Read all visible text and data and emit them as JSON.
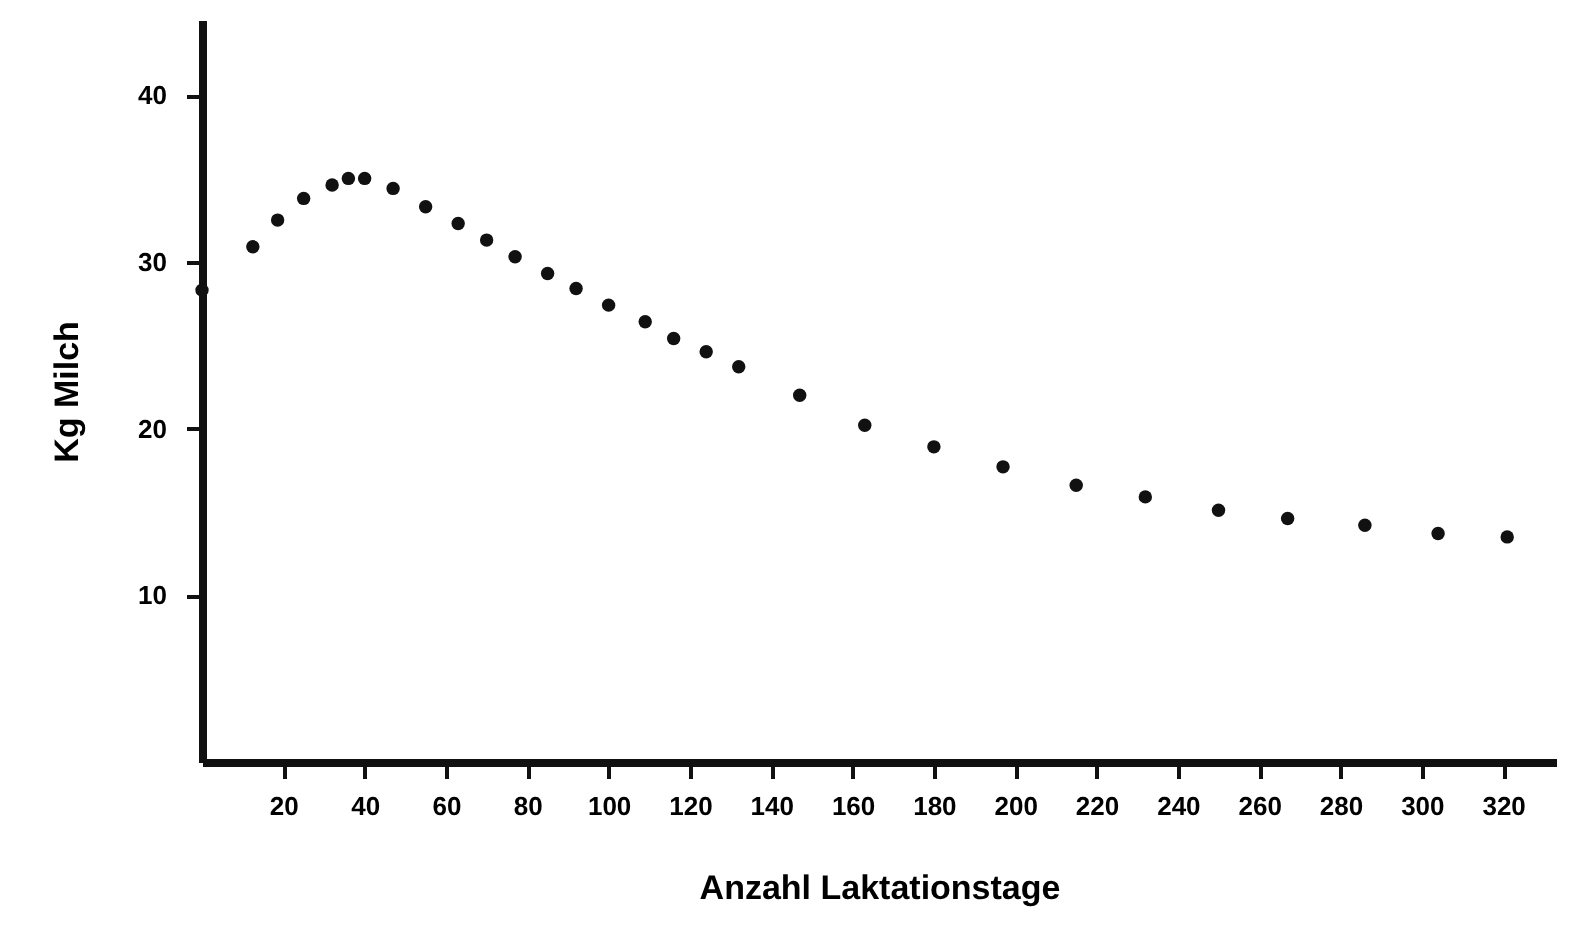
{
  "chart_data": {
    "type": "scatter",
    "xlabel": "Anzahl Laktationstage",
    "ylabel": "Kg Milch",
    "x": [
      0,
      12.5,
      18.6,
      25,
      32,
      36,
      40,
      47,
      55,
      63,
      70,
      77,
      85,
      92,
      100,
      109,
      116,
      124,
      132,
      147,
      163,
      180,
      197,
      215,
      232,
      250,
      267,
      286,
      304,
      321
    ],
    "series": [
      {
        "color": "#111111",
        "values": [
          28.3,
          30.9,
          32.5,
          33.8,
          34.6,
          35.0,
          35.0,
          34.4,
          33.3,
          32.3,
          31.3,
          30.3,
          29.3,
          28.4,
          27.4,
          26.4,
          25.4,
          24.6,
          23.7,
          22.0,
          20.2,
          18.9,
          17.7,
          16.6,
          15.9,
          15.1,
          14.6,
          14.2,
          13.7,
          13.5
        ]
      }
    ],
    "xlim": [
      0,
      333
    ],
    "ylim": [
      0,
      44.5
    ],
    "xticks": [
      20,
      40,
      60,
      80,
      100,
      120,
      140,
      160,
      180,
      200,
      220,
      240,
      260,
      280,
      300,
      320
    ],
    "yticks": [
      10,
      20,
      30,
      40
    ],
    "grid": false,
    "legend": false,
    "marker": "circle"
  }
}
